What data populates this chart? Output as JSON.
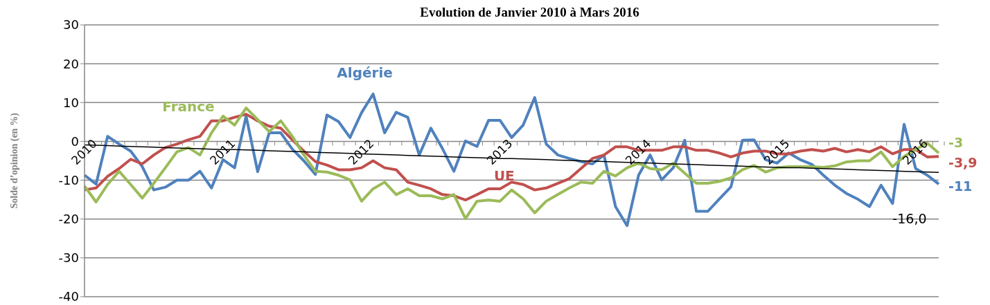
{
  "chart_data": {
    "type": "line",
    "title": "Evolution de Janvier 2010 à Mars 2016",
    "ylabel": "Solde d’opinion (en %)",
    "categories": [
      "2010",
      null,
      null,
      null,
      null,
      null,
      null,
      null,
      null,
      null,
      null,
      null,
      "2011",
      null,
      null,
      null,
      null,
      null,
      null,
      null,
      null,
      null,
      null,
      null,
      "2012",
      null,
      null,
      null,
      null,
      null,
      null,
      null,
      null,
      null,
      null,
      null,
      "2013",
      null,
      null,
      null,
      null,
      null,
      null,
      null,
      null,
      null,
      null,
      null,
      "2014",
      null,
      null,
      null,
      null,
      null,
      null,
      null,
      null,
      null,
      null,
      null,
      "2015",
      null,
      null,
      null,
      null,
      null,
      null,
      null,
      null,
      null,
      null,
      null,
      "2016",
      null,
      null
    ],
    "series": [
      {
        "name": "Algérie",
        "color": "#4f81bd",
        "values": [
          -8.7,
          -11,
          1.3,
          -0.7,
          -2.5,
          -6.5,
          -12.5,
          -11.8,
          -10,
          -10,
          -7.7,
          -12,
          -4.7,
          -6.8,
          6.5,
          -7.8,
          2.2,
          2.2,
          -2,
          -5,
          -8.5,
          6.8,
          5.1,
          1,
          7.4,
          12.2,
          2.2,
          7.5,
          6.2,
          -3.5,
          3.4,
          -1.8,
          -7.7,
          0.1,
          -1.3,
          5.4,
          5.4,
          1,
          4.2,
          11.3,
          -0.7,
          -3.5,
          -4.4,
          -5.2,
          -5.8,
          -3.5,
          -16.8,
          -21.7,
          -8.7,
          -3.5,
          -9.9,
          -6.8,
          0.3,
          -18,
          -18,
          -14.8,
          -11.7,
          0.3,
          0.4,
          -4.7,
          -5.6,
          -3,
          -4.7,
          -5.9,
          -8.7,
          -11.3,
          -13.4,
          -14.9,
          -16.8,
          -11.3,
          -16,
          4.4,
          -7,
          -8.7,
          -11
        ],
        "value_labels": [
          null,
          null,
          null,
          null,
          null,
          null,
          null,
          null,
          null,
          null,
          null,
          null,
          null,
          null,
          null,
          null,
          null,
          null,
          null,
          null,
          null,
          null,
          null,
          null,
          null,
          null,
          null,
          null,
          null,
          null,
          null,
          null,
          null,
          null,
          null,
          null,
          null,
          null,
          null,
          null,
          null,
          null,
          null,
          null,
          null,
          null,
          null,
          null,
          null,
          null,
          null,
          null,
          null,
          null,
          null,
          null,
          null,
          null,
          null,
          null,
          null,
          null,
          null,
          null,
          null,
          null,
          null,
          null,
          null,
          null,
          "-16,0",
          null,
          null,
          null,
          "-11"
        ]
      },
      {
        "name": "UE",
        "color": "#c0504d",
        "values": [
          -12.5,
          -12,
          -9,
          -7,
          -4.6,
          -5.8,
          -3.5,
          -1.6,
          -0.7,
          0.4,
          1.3,
          5.3,
          5.3,
          6.2,
          7,
          5.3,
          3.9,
          3.4,
          0.4,
          -2.5,
          -5.2,
          -6.1,
          -7.3,
          -7.3,
          -6.8,
          -5,
          -6.8,
          -7.3,
          -10.5,
          -11.3,
          -12.2,
          -13.7,
          -14,
          -15.1,
          -13.7,
          -12.2,
          -12.2,
          -10.5,
          -11.1,
          -12.5,
          -12,
          -10.8,
          -9.6,
          -7,
          -4.4,
          -3.5,
          -1.4,
          -1.4,
          -2.3,
          -2.3,
          -2.3,
          -1.4,
          -1.4,
          -2.3,
          -2.3,
          -3,
          -4,
          -3,
          -2.5,
          -2.5,
          -3.2,
          -3.2,
          -2.5,
          -2.1,
          -2.5,
          -1.8,
          -2.7,
          -2.1,
          -2.7,
          -1.4,
          -3.2,
          -2.1,
          -2.1,
          -4,
          -3.9
        ],
        "value_labels": [
          null,
          null,
          null,
          null,
          null,
          null,
          null,
          null,
          null,
          null,
          null,
          null,
          null,
          null,
          null,
          null,
          null,
          null,
          null,
          null,
          null,
          null,
          null,
          null,
          null,
          null,
          null,
          null,
          null,
          null,
          null,
          null,
          null,
          null,
          null,
          null,
          null,
          null,
          null,
          null,
          null,
          null,
          null,
          null,
          null,
          null,
          null,
          null,
          null,
          null,
          null,
          null,
          null,
          null,
          null,
          null,
          null,
          null,
          null,
          null,
          null,
          null,
          null,
          null,
          null,
          null,
          null,
          null,
          null,
          null,
          null,
          null,
          null,
          null,
          "-3,9"
        ]
      },
      {
        "name": "France",
        "color": "#9bbb59",
        "values": [
          -11.5,
          -15.6,
          -11.1,
          -7.7,
          -11.1,
          -14.6,
          -10.8,
          -6.8,
          -2.7,
          -1.6,
          -3.5,
          2.2,
          6.5,
          4.2,
          8.6,
          5.6,
          2.5,
          5.3,
          1.3,
          -3.5,
          -7.7,
          -7.9,
          -8.7,
          -9.9,
          -15.4,
          -12.2,
          -10.5,
          -13.7,
          -12.2,
          -14,
          -14,
          -14.8,
          -13.7,
          -19.9,
          -15.4,
          -15.1,
          -15.4,
          -12.5,
          -14.8,
          -18.4,
          -15.4,
          -13.7,
          -12,
          -10.5,
          -10.8,
          -7.7,
          -8.9,
          -6.8,
          -5.6,
          -7,
          -7.3,
          -5.6,
          -8.2,
          -10.8,
          -10.8,
          -10.3,
          -9.4,
          -7.3,
          -6.2,
          -7.9,
          -6.8,
          -6.5,
          -6.5,
          -6.5,
          -6.7,
          -6.3,
          -5.3,
          -5,
          -5,
          -2.7,
          -6.5,
          -3.9,
          -2.1,
          -0.4,
          -3
        ],
        "value_labels": [
          null,
          null,
          null,
          null,
          null,
          null,
          null,
          null,
          null,
          null,
          null,
          null,
          null,
          null,
          null,
          null,
          null,
          null,
          null,
          null,
          null,
          null,
          null,
          null,
          null,
          null,
          null,
          null,
          null,
          null,
          null,
          null,
          null,
          null,
          null,
          null,
          null,
          null,
          null,
          null,
          null,
          null,
          null,
          null,
          null,
          null,
          null,
          null,
          null,
          null,
          null,
          null,
          null,
          null,
          null,
          null,
          null,
          null,
          null,
          null,
          null,
          null,
          null,
          null,
          null,
          null,
          null,
          null,
          null,
          null,
          null,
          null,
          null,
          null,
          "-3"
        ]
      },
      {
        "type": "line",
        "color": "#000000",
        "values": [
          -0.9,
          -1.0,
          -1.1,
          -1.2,
          -1.3,
          -1.4,
          -1.5,
          -1.6,
          -1.7,
          -1.8,
          -1.9,
          -2.0,
          -2.1,
          -2.1,
          -2.2,
          -2.3,
          -2.4,
          -2.5,
          -2.6,
          -2.7,
          -2.8,
          -2.9,
          -3.0,
          -3.1,
          -3.2,
          -3.3,
          -3.4,
          -3.5,
          -3.6,
          -3.7,
          -3.8,
          -3.9,
          -4.0,
          -4.1,
          -4.2,
          -4.3,
          -4.4,
          -4.4,
          -4.5,
          -4.6,
          -4.7,
          -4.8,
          -4.9,
          -5.0,
          -5.1,
          -5.2,
          -5.3,
          -5.4,
          -5.5,
          -5.6,
          -5.7,
          -5.8,
          -5.9,
          -6.0,
          -6.1,
          -6.2,
          -6.3,
          -6.4,
          -6.5,
          -6.6,
          -6.7,
          -6.8,
          -6.8,
          -6.9,
          -7.0,
          -7.1,
          -7.2,
          -7.3,
          -7.4,
          -7.5,
          -7.6,
          -7.7,
          -7.8,
          -7.9,
          -8.0
        ]
      }
    ],
    "ylim": [
      -40,
      30
    ],
    "yticks": [
      -40,
      -30,
      -20,
      -10,
      0,
      10,
      20,
      30
    ],
    "grid": "y",
    "marker": "none",
    "line_style": "solid"
  }
}
